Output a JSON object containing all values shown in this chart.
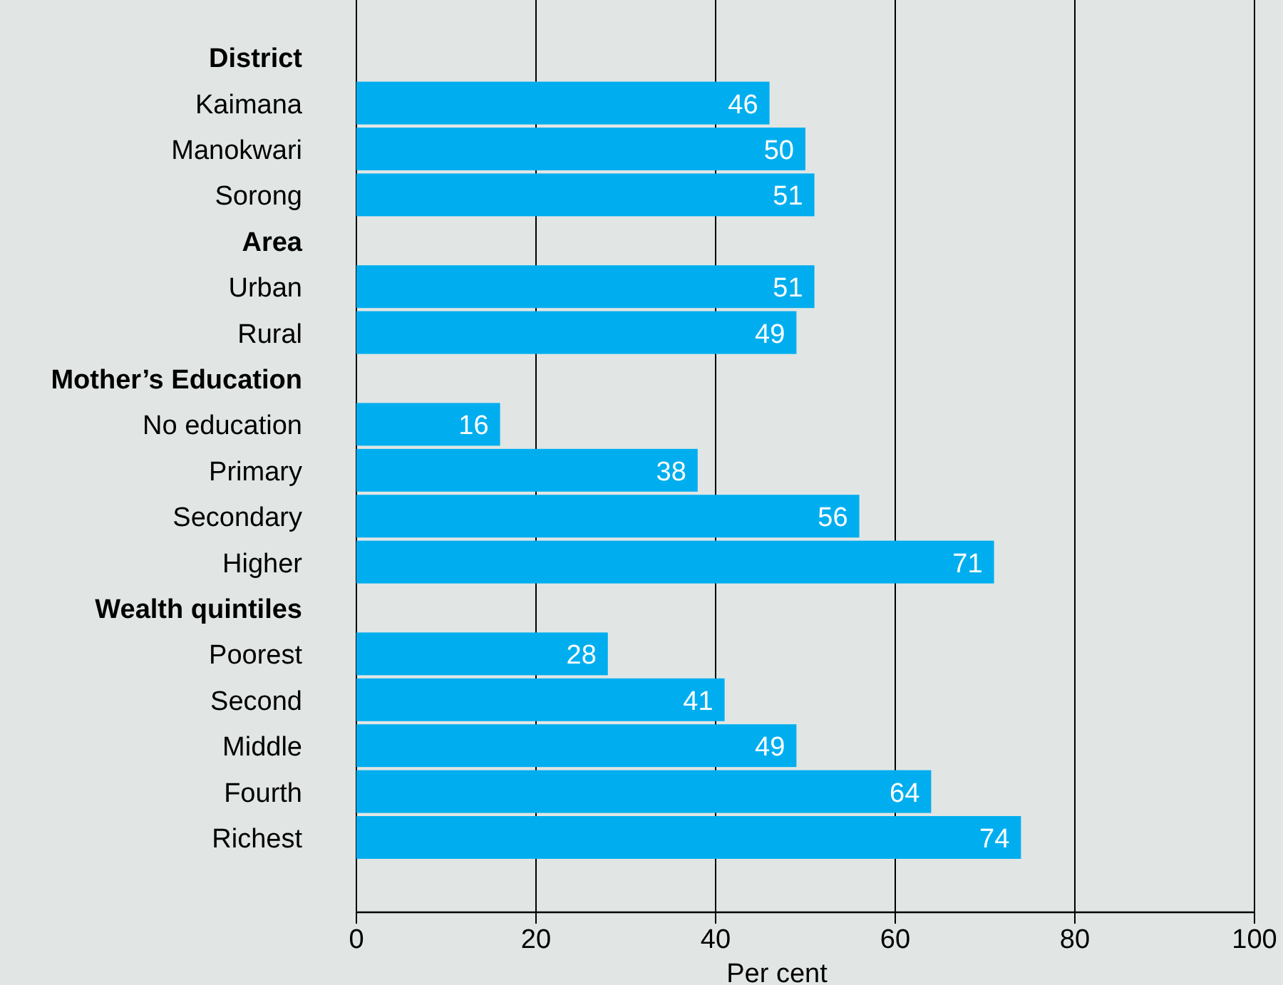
{
  "chart_data": {
    "type": "bar",
    "orientation": "horizontal",
    "xlabel": "Per cent",
    "categories": [
      "District",
      "Kaimana",
      "Manokwari",
      "Sorong",
      "Area",
      "Urban",
      "Rural",
      "Mother’s Education",
      "No education",
      "Primary",
      "Secondary",
      "Higher",
      "Wealth quintiles",
      "Poorest",
      "Second",
      "Middle",
      "Fourth",
      "Richest"
    ],
    "values": [
      null,
      46,
      50,
      51,
      null,
      51,
      49,
      null,
      16,
      38,
      56,
      71,
      null,
      28,
      41,
      49,
      64,
      74
    ],
    "color": "#00aeef",
    "xlim": [
      0,
      100
    ],
    "xticks": [
      0,
      20,
      40,
      60,
      80,
      100
    ],
    "grid": "x",
    "data_labels": true
  }
}
